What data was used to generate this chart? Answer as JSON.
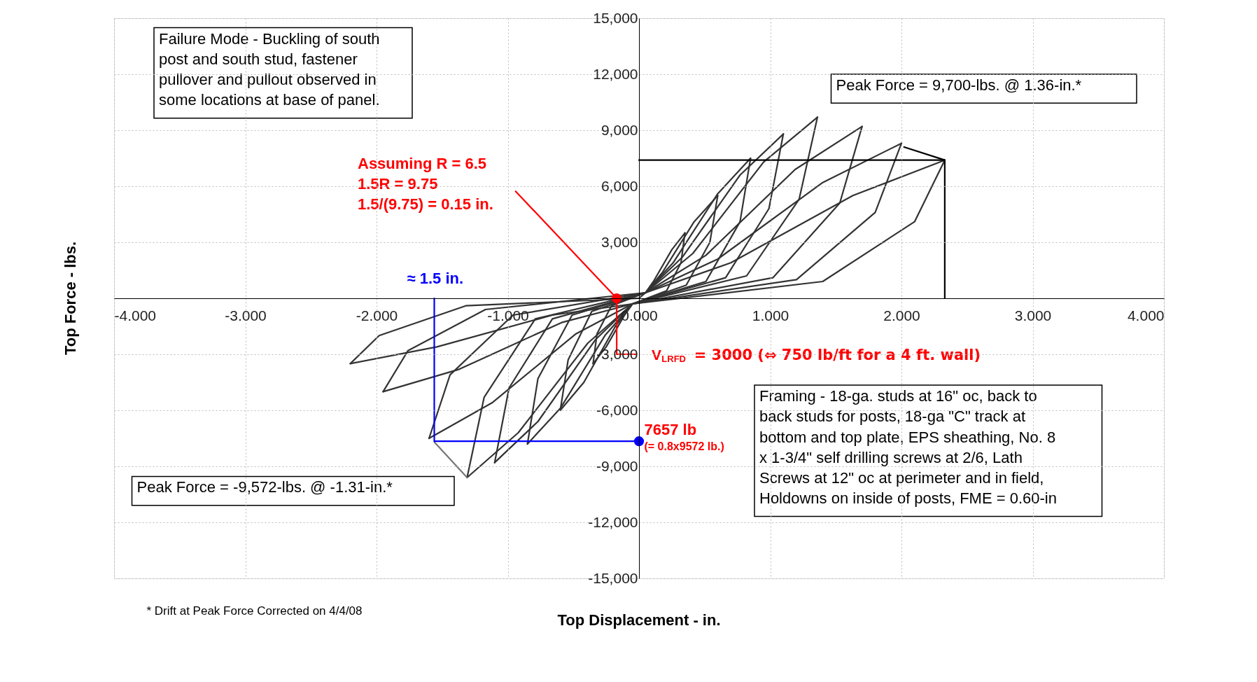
{
  "chart_data": {
    "type": "line",
    "xlabel": "Top Displacement - in.",
    "ylabel": "Top Force - lbs.",
    "xlim": [
      -4,
      4
    ],
    "ylim": [
      -15000,
      15000
    ],
    "xticks": [
      {
        "value": -4,
        "label": "-4.000"
      },
      {
        "value": -3,
        "label": "-3.000"
      },
      {
        "value": -2,
        "label": "-2.000"
      },
      {
        "value": -1,
        "label": "-1.000"
      },
      {
        "value": 0,
        "label": "0.000"
      },
      {
        "value": 1,
        "label": "1.000"
      },
      {
        "value": 2,
        "label": "2.000"
      },
      {
        "value": 3,
        "label": "3.000"
      },
      {
        "value": 4,
        "label": "4.000"
      }
    ],
    "yticks": [
      {
        "value": -15000,
        "label": "-15,000"
      },
      {
        "value": -12000,
        "label": "-12,000"
      },
      {
        "value": -9000,
        "label": "-9,000"
      },
      {
        "value": -6000,
        "label": "-6,000"
      },
      {
        "value": -3000,
        "label": "-3,000"
      },
      {
        "value": 0,
        "label": null
      },
      {
        "value": 3000,
        "label": "3,000"
      },
      {
        "value": 6000,
        "label": "6,000"
      },
      {
        "value": 9000,
        "label": "9,000"
      },
      {
        "value": 12000,
        "label": "12,000"
      },
      {
        "value": 15000,
        "label": "15,000"
      }
    ],
    "grid": true,
    "series": [
      {
        "color": "#333333",
        "x": [
          0,
          0.05,
          0.11,
          0.25,
          0.35
        ],
        "values": [
          0,
          300,
          900,
          2600,
          3500
        ]
      },
      {
        "color": "#333333",
        "x": [
          0.35,
          0.32,
          0.21,
          -0.05,
          -0.11,
          -0.25,
          -0.35
        ],
        "values": [
          3500,
          1900,
          400,
          -300,
          -900,
          -2600,
          -3500
        ]
      },
      {
        "color": "#333333",
        "x": [
          -0.35,
          -0.32,
          -0.21,
          0.05,
          0.18,
          0.42,
          0.6
        ],
        "values": [
          -3500,
          -1900,
          -400,
          300,
          1400,
          4100,
          5500
        ]
      },
      {
        "color": "#333333",
        "x": [
          0.6,
          0.54,
          0.36,
          -0.05,
          -0.18,
          -0.42,
          -0.6
        ],
        "values": [
          5500,
          3000,
          700,
          -300,
          -1500,
          -4500,
          -6000
        ]
      },
      {
        "color": "#333333",
        "x": [
          -0.6,
          -0.54,
          -0.36,
          0.05,
          0.26,
          0.6,
          0.85
        ],
        "values": [
          -6000,
          -3300,
          -700,
          300,
          1900,
          5600,
          7500
        ]
      },
      {
        "color": "#333333",
        "x": [
          0.85,
          0.77,
          0.51,
          -0.05,
          -0.26,
          -0.6,
          -0.85
        ],
        "values": [
          7500,
          4100,
          900,
          -300,
          -2000,
          -5900,
          -7800
        ]
      },
      {
        "color": "#333333",
        "x": [
          -0.85,
          -0.77,
          -0.51,
          0.05,
          0.33,
          0.77,
          1.1
        ],
        "values": [
          -7800,
          -4300,
          -900,
          300,
          2200,
          6600,
          8800
        ]
      },
      {
        "color": "#333333",
        "x": [
          1.1,
          0.99,
          0.66,
          -0.05,
          -0.33,
          -0.77,
          -1.1
        ],
        "values": [
          8800,
          4800,
          1100,
          -300,
          -2200,
          -6600,
          -8800
        ]
      },
      {
        "color": "#333333",
        "x": [
          -1.1,
          -0.99,
          -0.66,
          0.05,
          0.41,
          0.95,
          1.36
        ],
        "values": [
          -8800,
          -4800,
          -1100,
          300,
          2400,
          7300,
          9700
        ]
      },
      {
        "color": "#333333",
        "x": [
          1.36,
          1.22,
          0.82,
          -0.05,
          -0.39,
          -0.92,
          -1.31
        ],
        "values": [
          9700,
          5300,
          1200,
          -300,
          -2400,
          -7200,
          -9600
        ]
      },
      {
        "color": "#333333",
        "x": [
          -1.31,
          -1.18,
          -0.79,
          0.05,
          0.51,
          1.19,
          1.7
        ],
        "values": [
          -9600,
          -5300,
          -1100,
          300,
          2300,
          6900,
          9200
        ]
      },
      {
        "color": "#333333",
        "x": [
          1.7,
          1.53,
          1.02,
          -0.05,
          -0.48,
          -1.12,
          -1.6
        ],
        "values": [
          9200,
          5100,
          1100,
          -300,
          -1900,
          -5600,
          -7500
        ]
      },
      {
        "color": "#333333",
        "x": [
          -1.6,
          -1.44,
          -0.96,
          0.05,
          0.6,
          1.4,
          2.0
        ],
        "values": [
          -7500,
          -4100,
          -900,
          300,
          2100,
          6200,
          8300
        ]
      },
      {
        "color": "#333333",
        "x": [
          2.0,
          1.8,
          1.2,
          -0.05,
          -0.59,
          -1.37,
          -1.95
        ],
        "values": [
          8300,
          4600,
          1000,
          -300,
          -1300,
          -3800,
          -5000
        ]
      },
      {
        "color": "#333333",
        "x": [
          -1.95,
          -1.76,
          -1.17,
          0.05,
          0.7,
          1.63,
          2.33
        ],
        "values": [
          -5000,
          -2800,
          -600,
          300,
          1900,
          5500,
          7400
        ]
      },
      {
        "color": "#333333",
        "x": [
          2.33,
          2.1,
          1.4,
          -0.05,
          -0.66,
          -1.54,
          -2.2
        ],
        "values": [
          7400,
          4100,
          900,
          -300,
          -900,
          -2600,
          -3500
        ]
      },
      {
        "color": "#333333",
        "x": [
          -2.2,
          -1.98,
          -1.32,
          0
        ],
        "values": [
          -3500,
          -2000,
          -400,
          0
        ]
      },
      {
        "color": "#000000",
        "x": [
          0,
          2.33
        ],
        "values": [
          7400,
          7400
        ]
      },
      {
        "color": "#000000",
        "x": [
          2.02,
          2.33,
          2.33
        ],
        "values": [
          8100,
          7400,
          0
        ]
      },
      {
        "color": "#777777",
        "x": [
          -1.56,
          -1.31
        ],
        "values": [
          -7700,
          -9600
        ]
      },
      {
        "color": "#ff0000",
        "x": [
          -0.94,
          -0.17,
          -0.17,
          -0.02
        ],
        "values": [
          5730,
          0,
          -3000,
          -3000
        ]
      },
      {
        "color": "#ff0000",
        "type": "scatter",
        "marker": "circle",
        "x": [
          -0.17
        ],
        "values": [
          0
        ]
      },
      {
        "color": "#0000ff",
        "x": [
          -1.56,
          -1.56,
          0
        ],
        "values": [
          0,
          -7657,
          -7657
        ]
      },
      {
        "color": "#0000ff",
        "type": "scatter",
        "marker": "circle",
        "x": [
          0
        ],
        "values": [
          -7657
        ]
      }
    ],
    "annotations": [
      "Failure Mode - Buckling of south post and south stud, fastener pullover and pullout observed in some locations at base of panel.",
      "Peak Force = 9,700-lbs. @ 1.36-in.*",
      "Peak Force = -9,572-lbs. @ -1.31-in.*",
      "Framing - 18-ga. studs at 16\" oc, back to back studs for posts, 18-ga \"C\" track at bottom and top plate, EPS sheathing, No. 8 x 1-3/4\" self drilling screws at 2/6, Lath Screws at 12\" oc at perimeter and in field, Holdowns on inside of posts, FME = 0.60-in",
      "* Drift at Peak Force Corrected on 4/4/08",
      "Assuming R = 6.5",
      "1.5R = 9.75",
      "1.5/(9.75) = 0.15 in.",
      "≈ 1.5 in.",
      "7657 lb",
      "(= 0.8x9572 lb.)",
      "V$_{LRFD}$ = 3000 (⇔ 750 lb/ft for a 4 ft. wall)"
    ]
  }
}
